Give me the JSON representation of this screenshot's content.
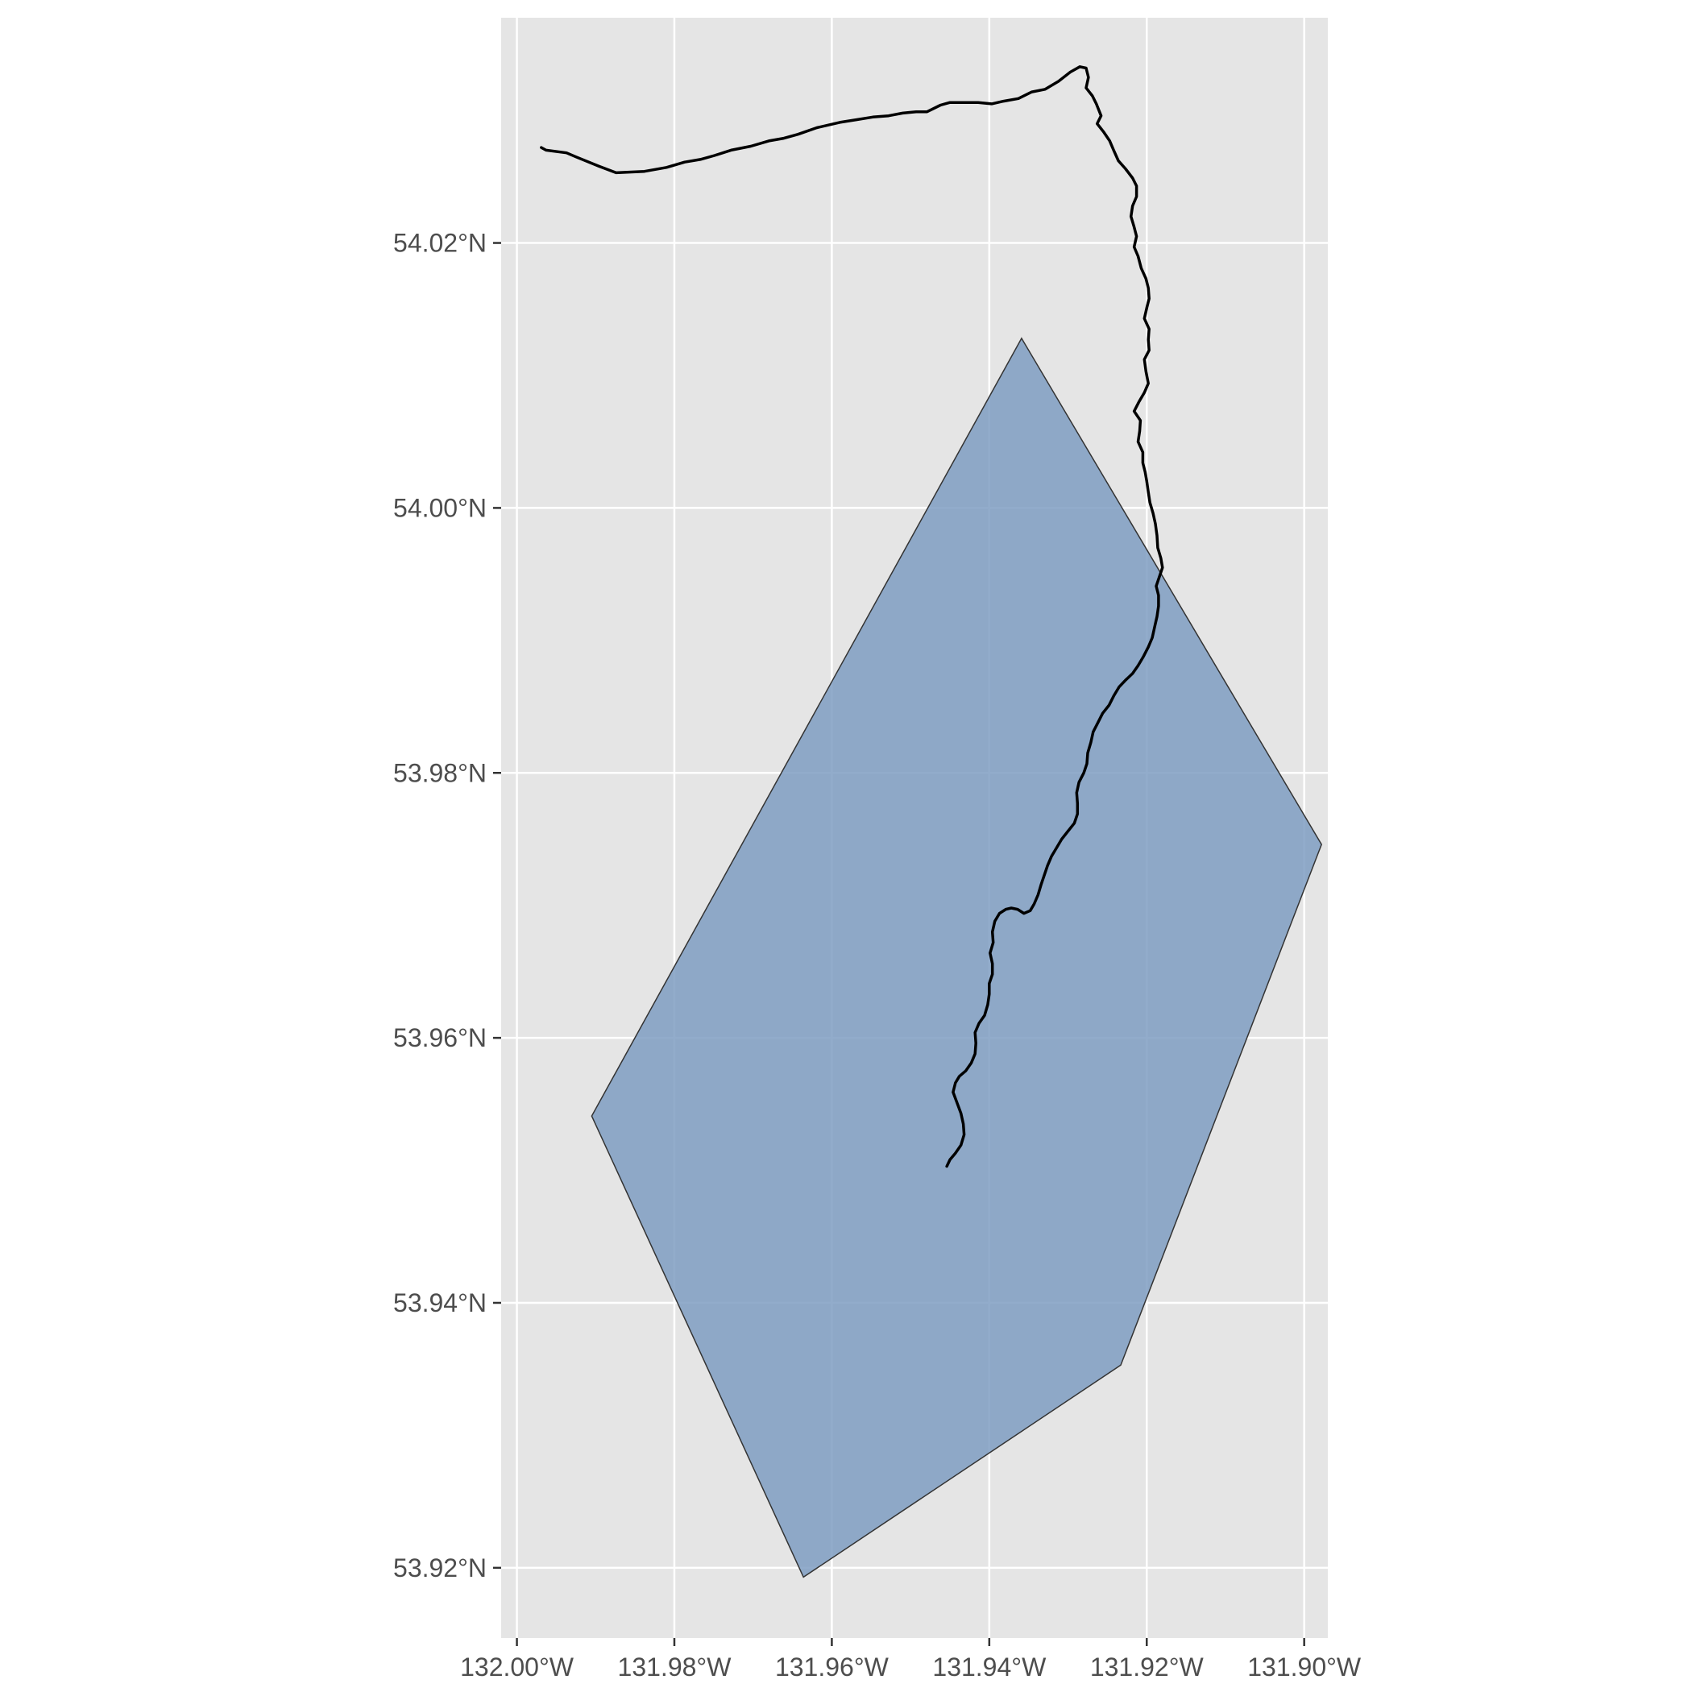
{
  "map": {
    "type": "ggplot-sf-map",
    "panel_background": "#e5e5e5",
    "grid_color": "#ffffff",
    "grid": true,
    "x_axis": {
      "range": [
        -132.002,
        -131.897
      ],
      "ticks": [
        {
          "value": -132.0,
          "label": "132.00°W"
        },
        {
          "value": -131.98,
          "label": "131.98°W"
        },
        {
          "value": -131.96,
          "label": "131.96°W"
        },
        {
          "value": -131.94,
          "label": "131.94°W"
        },
        {
          "value": -131.92,
          "label": "131.92°W"
        },
        {
          "value": -131.9,
          "label": "131.90°W"
        }
      ]
    },
    "y_axis": {
      "range": [
        53.9147,
        54.037
      ],
      "ticks": [
        {
          "value": 53.92,
          "label": "53.92°N"
        },
        {
          "value": 53.94,
          "label": "53.94°N"
        },
        {
          "value": 53.96,
          "label": "53.96°N"
        },
        {
          "value": 53.98,
          "label": "53.98°N"
        },
        {
          "value": 54.0,
          "label": "54.00°N"
        },
        {
          "value": 54.02,
          "label": "54.02°N"
        }
      ]
    },
    "polygon": {
      "fill": "#7f9ec2",
      "opacity": 0.85,
      "stroke": "#333333",
      "vertices": [
        [
          -131.9359,
          54.0128
        ],
        [
          -131.8978,
          53.9746
        ],
        [
          -131.9233,
          53.9353
        ],
        [
          -131.9636,
          53.9193
        ],
        [
          -131.9905,
          53.9541
        ]
      ]
    },
    "line": {
      "stroke": "#000000",
      "points": [
        [
          -131.9969,
          54.0272
        ],
        [
          -131.9963,
          54.027
        ],
        [
          -131.9937,
          54.0268
        ],
        [
          -131.9925,
          54.0265
        ],
        [
          -131.9896,
          54.0258
        ],
        [
          -131.9874,
          54.0253
        ],
        [
          -131.9838,
          54.0254
        ],
        [
          -131.981,
          54.0257
        ],
        [
          -131.9787,
          54.0261
        ],
        [
          -131.9767,
          54.0263
        ],
        [
          -131.9749,
          54.0266
        ],
        [
          -131.9728,
          54.027
        ],
        [
          -131.9703,
          54.0273
        ],
        [
          -131.968,
          54.0277
        ],
        [
          -131.9661,
          54.0279
        ],
        [
          -131.9643,
          54.0282
        ],
        [
          -131.9619,
          54.0287
        ],
        [
          -131.959,
          54.0291
        ],
        [
          -131.9569,
          54.0293
        ],
        [
          -131.9548,
          54.0295
        ],
        [
          -131.9528,
          54.0296
        ],
        [
          -131.951,
          54.0298
        ],
        [
          -131.9493,
          54.0299
        ],
        [
          -131.9479,
          54.0299
        ],
        [
          -131.9462,
          54.0304
        ],
        [
          -131.945,
          54.0306
        ],
        [
          -131.9432,
          54.0306
        ],
        [
          -131.9414,
          54.0306
        ],
        [
          -131.9397,
          54.0305
        ],
        [
          -131.9382,
          54.0307
        ],
        [
          -131.9363,
          54.0309
        ],
        [
          -131.9346,
          54.0314
        ],
        [
          -131.9329,
          54.0316
        ],
        [
          -131.9312,
          54.0322
        ],
        [
          -131.9297,
          54.0329
        ],
        [
          -131.9285,
          54.0333
        ],
        [
          -131.9277,
          54.0332
        ],
        [
          -131.9274,
          54.0325
        ],
        [
          -131.9277,
          54.0317
        ],
        [
          -131.9269,
          54.0311
        ],
        [
          -131.9264,
          54.0305
        ],
        [
          -131.9258,
          54.0296
        ],
        [
          -131.9263,
          54.029
        ],
        [
          -131.9255,
          54.0284
        ],
        [
          -131.9247,
          54.0277
        ],
        [
          -131.9242,
          54.027
        ],
        [
          -131.9236,
          54.0262
        ],
        [
          -131.9227,
          54.0256
        ],
        [
          -131.9218,
          54.0249
        ],
        [
          -131.9213,
          54.0243
        ],
        [
          -131.9213,
          54.0235
        ],
        [
          -131.9218,
          54.0228
        ],
        [
          -131.922,
          54.022
        ],
        [
          -131.9216,
          54.0212
        ],
        [
          -131.9213,
          54.0205
        ],
        [
          -131.9216,
          54.0197
        ],
        [
          -131.9211,
          54.019
        ],
        [
          -131.9207,
          54.0181
        ],
        [
          -131.9201,
          54.0173
        ],
        [
          -131.9198,
          54.0166
        ],
        [
          -131.9197,
          54.0158
        ],
        [
          -131.92,
          54.0151
        ],
        [
          -131.9203,
          54.0143
        ],
        [
          -131.9197,
          54.0135
        ],
        [
          -131.9198,
          54.0127
        ],
        [
          -131.9197,
          54.0119
        ],
        [
          -131.9203,
          54.0112
        ],
        [
          -131.9201,
          54.0103
        ],
        [
          -131.9198,
          54.0094
        ],
        [
          -131.9203,
          54.0087
        ],
        [
          -131.921,
          54.008
        ],
        [
          -131.9216,
          54.0073
        ],
        [
          -131.9208,
          54.0066
        ],
        [
          -131.9209,
          54.0058
        ],
        [
          -131.9211,
          54.005
        ],
        [
          -131.9205,
          54.0042
        ],
        [
          -131.9205,
          54.0034
        ],
        [
          -131.9202,
          54.0027
        ],
        [
          -131.92,
          54.002
        ],
        [
          -131.9198,
          54.0012
        ],
        [
          -131.9196,
          54.0004
        ],
        [
          -131.9192,
          53.9996
        ],
        [
          -131.9189,
          53.9988
        ],
        [
          -131.9187,
          53.9979
        ],
        [
          -131.9186,
          53.997
        ],
        [
          -131.9182,
          53.9962
        ],
        [
          -131.918,
          53.9955
        ],
        [
          -131.9184,
          53.9948
        ],
        [
          -131.9188,
          53.9941
        ],
        [
          -131.9185,
          53.9934
        ],
        [
          -131.9185,
          53.9926
        ],
        [
          -131.9187,
          53.9918
        ],
        [
          -131.919,
          53.991
        ],
        [
          -131.9193,
          53.9902
        ],
        [
          -131.9198,
          53.9895
        ],
        [
          -131.9204,
          53.9888
        ],
        [
          -131.9211,
          53.9881
        ],
        [
          -131.9218,
          53.9875
        ],
        [
          -131.9227,
          53.987
        ],
        [
          -131.9235,
          53.9865
        ],
        [
          -131.9242,
          53.9858
        ],
        [
          -131.9248,
          53.9851
        ],
        [
          -131.9256,
          53.9845
        ],
        [
          -131.9262,
          53.9838
        ],
        [
          -131.9268,
          53.9831
        ],
        [
          -131.9271,
          53.9823
        ],
        [
          -131.9275,
          53.9815
        ],
        [
          -131.9276,
          53.9807
        ],
        [
          -131.928,
          53.98
        ],
        [
          -131.9286,
          53.9793
        ],
        [
          -131.9289,
          53.9785
        ],
        [
          -131.9288,
          53.9777
        ],
        [
          -131.9288,
          53.9769
        ],
        [
          -131.9292,
          53.9762
        ],
        [
          -131.93,
          53.9756
        ],
        [
          -131.9308,
          53.975
        ],
        [
          -131.9315,
          53.9743
        ],
        [
          -131.9321,
          53.9737
        ],
        [
          -131.9326,
          53.973
        ],
        [
          -131.933,
          53.9723
        ],
        [
          -131.9334,
          53.9716
        ],
        [
          -131.9338,
          53.9708
        ],
        [
          -131.9343,
          53.9701
        ],
        [
          -131.9348,
          53.9696
        ],
        [
          -131.9356,
          53.9694
        ],
        [
          -131.9364,
          53.9697
        ],
        [
          -131.9372,
          53.9698
        ],
        [
          -131.9379,
          53.9697
        ],
        [
          -131.9387,
          53.9694
        ],
        [
          -131.9393,
          53.9688
        ],
        [
          -131.9396,
          53.968
        ],
        [
          -131.9395,
          53.9672
        ],
        [
          -131.9399,
          53.9664
        ],
        [
          -131.9396,
          53.9656
        ],
        [
          -131.9396,
          53.9648
        ],
        [
          -131.94,
          53.9641
        ],
        [
          -131.94,
          53.9633
        ],
        [
          -131.9402,
          53.9625
        ],
        [
          -131.9406,
          53.9617
        ],
        [
          -131.9413,
          53.9611
        ],
        [
          -131.9418,
          53.9604
        ],
        [
          -131.9417,
          53.9596
        ],
        [
          -131.9418,
          53.9588
        ],
        [
          -131.9423,
          53.9581
        ],
        [
          -131.943,
          53.9575
        ],
        [
          -131.9438,
          53.9571
        ],
        [
          -131.9443,
          53.9566
        ],
        [
          -131.9446,
          53.9559
        ],
        [
          -131.9441,
          53.9551
        ],
        [
          -131.9436,
          53.9543
        ],
        [
          -131.9433,
          53.9535
        ],
        [
          -131.9432,
          53.9527
        ],
        [
          -131.9436,
          53.9519
        ],
        [
          -131.9443,
          53.9513
        ],
        [
          -131.945,
          53.9508
        ],
        [
          -131.9454,
          53.9503
        ]
      ]
    }
  }
}
